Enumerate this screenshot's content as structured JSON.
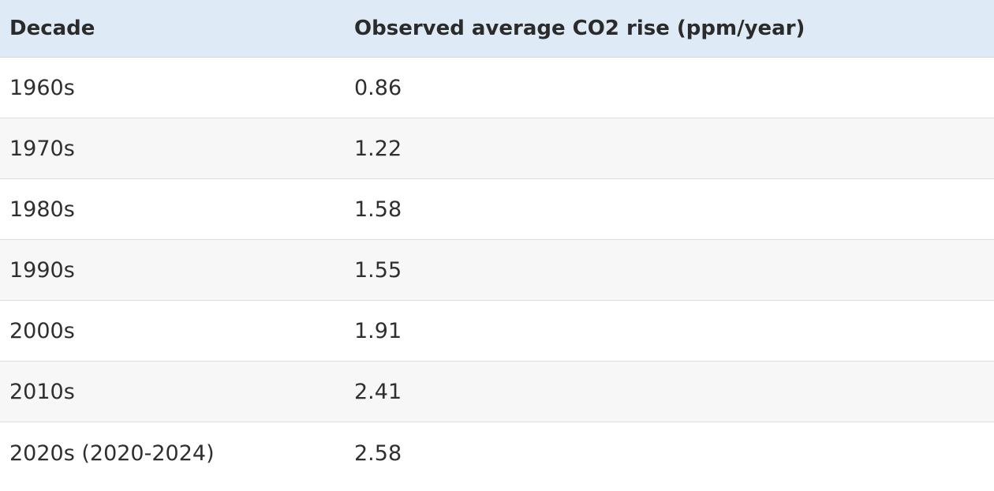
{
  "table": {
    "headers": [
      "Decade",
      "Observed average CO2 rise (ppm/year)"
    ],
    "rows": [
      [
        "1960s",
        "0.86"
      ],
      [
        "1970s",
        "1.22"
      ],
      [
        "1980s",
        "1.58"
      ],
      [
        "1990s",
        "1.55"
      ],
      [
        "2000s",
        "1.91"
      ],
      [
        "2010s",
        "2.41"
      ],
      [
        "2020s (2020-2024)",
        "2.58"
      ]
    ]
  },
  "colors": {
    "header_background": "#deeaf6",
    "stripe_background": "#f7f7f7",
    "text": "#2f2f2f"
  }
}
